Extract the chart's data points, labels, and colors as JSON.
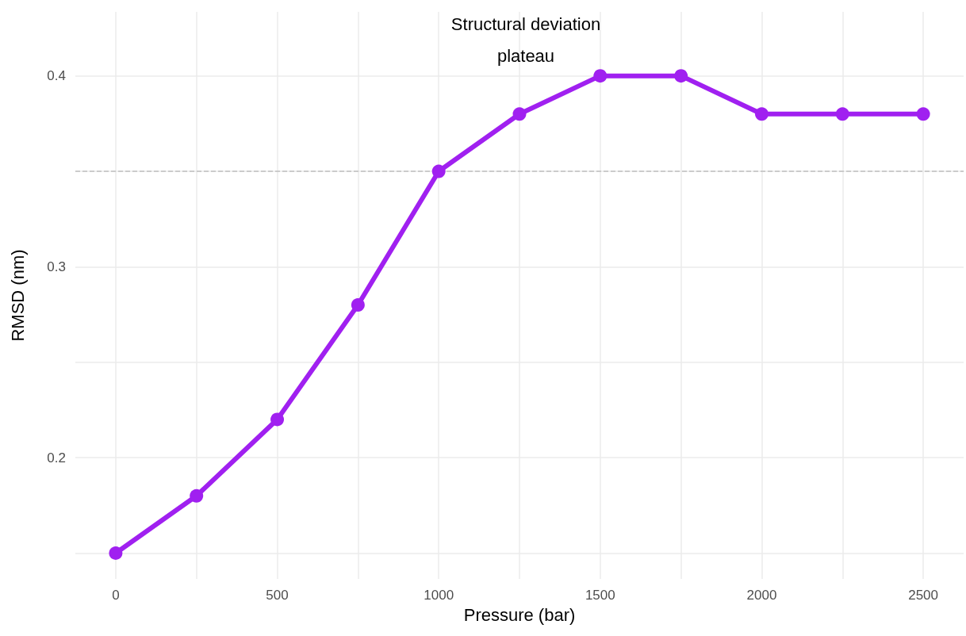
{
  "chart_data": {
    "type": "line",
    "xlabel": "Pressure (bar)",
    "ylabel": "RMSD (nm)",
    "x": [
      0,
      250,
      500,
      750,
      1000,
      1250,
      1500,
      1750,
      2000,
      2250,
      2500
    ],
    "series": [
      {
        "color": "#a020f0",
        "values": [
          0.15,
          0.18,
          0.22,
          0.28,
          0.35,
          0.38,
          0.4,
          0.4,
          0.38,
          0.38,
          0.38
        ]
      }
    ],
    "xlim": [
      -125,
      2625
    ],
    "xticks": [
      0,
      {
        "value": 250,
        "label": null
      },
      500,
      {
        "value": 750,
        "label": null
      },
      1000,
      {
        "value": 1250,
        "label": null
      },
      1500,
      {
        "value": 1750,
        "label": null
      },
      2000,
      {
        "value": 2250,
        "label": null
      },
      2500
    ],
    "ylim": [
      0.1365,
      0.4335
    ],
    "yticks": [
      {
        "value": 0.15,
        "label": null
      },
      0.2,
      {
        "value": 0.25,
        "label": null
      },
      0.3,
      {
        "value": 0.35,
        "label": null
      },
      0.4
    ],
    "ref_lines": [
      {
        "axis": "y",
        "value": 0.35,
        "color": "#bebebe",
        "line_style": "dashed"
      }
    ],
    "annotations": [
      "Structural deviation\nplateau"
    ],
    "grid": true,
    "marker": "circle",
    "line_style": "solid"
  }
}
